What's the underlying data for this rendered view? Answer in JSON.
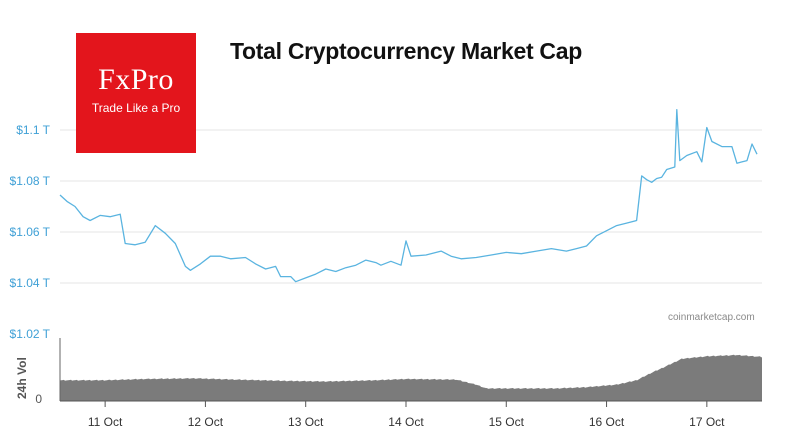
{
  "logo": {
    "name": "FxPro",
    "tagline": "Trade Like a Pro"
  },
  "source": "coinmarketcap.com",
  "colors": {
    "line": "#5ab4e0",
    "volume": "#7b7b7b",
    "logo_bg": "#e3151c",
    "tick_blue": "#3fa0d6",
    "grid": "#e6e6e6"
  },
  "chart_data": {
    "type": "line",
    "title": "Total Cryptocurrency Market Cap",
    "ylabel": "",
    "y_tick_labels": [
      "$1.1 T",
      "$1.08 T",
      "$1.06 T",
      "$1.04 T",
      "$1.02 T"
    ],
    "y_ticks": [
      1.1,
      1.08,
      1.06,
      1.04,
      1.02
    ],
    "ylim": [
      1.02,
      1.1
    ],
    "x_tick_labels": [
      "11 Oct",
      "12 Oct",
      "13 Oct",
      "14 Oct",
      "15 Oct",
      "16 Oct",
      "17 Oct"
    ],
    "x_ticks": [
      11,
      12,
      13,
      14,
      15,
      16,
      17
    ],
    "xlim": [
      10.55,
      17.55
    ],
    "grid": true,
    "series": [
      {
        "x": [
          10.55,
          10.62,
          10.7,
          10.78,
          10.85,
          10.95,
          11.05,
          11.15,
          11.2,
          11.3,
          11.4,
          11.5,
          11.6,
          11.7,
          11.8,
          11.85,
          11.95,
          12.05,
          12.15,
          12.25,
          12.4,
          12.5,
          12.6,
          12.7,
          12.75,
          12.85,
          12.9,
          13.0,
          13.1,
          13.2,
          13.3,
          13.4,
          13.5,
          13.6,
          13.7,
          13.75,
          13.85,
          13.95,
          14.0,
          14.05,
          14.2,
          14.35,
          14.45,
          14.55,
          14.7,
          14.85,
          15.0,
          15.15,
          15.3,
          15.45,
          15.6,
          15.7,
          15.8,
          15.9,
          16.0,
          16.1,
          16.2,
          16.3,
          16.35,
          16.4,
          16.45,
          16.5,
          16.55,
          16.6,
          16.68,
          16.7,
          16.73,
          16.8,
          16.9,
          16.95,
          17.0,
          17.05,
          17.15,
          17.25,
          17.3,
          17.35,
          17.4,
          17.45,
          17.5
        ],
        "y": [
          1.0745,
          1.072,
          1.07,
          1.066,
          1.0645,
          1.0665,
          1.066,
          1.067,
          1.0555,
          1.055,
          1.056,
          1.0625,
          1.0595,
          1.0555,
          1.0465,
          1.045,
          1.0475,
          1.0505,
          1.0505,
          1.0495,
          1.05,
          1.0475,
          1.0455,
          1.0465,
          1.0425,
          1.0425,
          1.0405,
          1.042,
          1.0435,
          1.0455,
          1.0445,
          1.046,
          1.047,
          1.049,
          1.048,
          1.047,
          1.0485,
          1.047,
          1.0565,
          1.0505,
          1.051,
          1.0525,
          1.0505,
          1.0495,
          1.05,
          1.051,
          1.052,
          1.0515,
          1.0525,
          1.0535,
          1.0525,
          1.0535,
          1.0545,
          1.0585,
          1.0605,
          1.0625,
          1.0635,
          1.0645,
          1.082,
          1.0805,
          1.0795,
          1.081,
          1.0815,
          1.0845,
          1.0855,
          1.108,
          1.088,
          1.09,
          1.0915,
          1.0875,
          1.101,
          1.0955,
          1.0935,
          1.0935,
          1.087,
          1.0875,
          1.088,
          1.0945,
          1.0905
        ]
      }
    ],
    "volume": {
      "ylabel": "24h Vol",
      "zero_label": "0",
      "x": [
        10.55,
        11.0,
        11.4,
        11.9,
        12.3,
        12.8,
        13.2,
        13.7,
        14.0,
        14.5,
        14.7,
        14.8,
        15.0,
        15.5,
        15.8,
        16.1,
        16.3,
        16.45,
        16.55,
        16.75,
        17.0,
        17.3,
        17.55
      ],
      "values": [
        0.33,
        0.33,
        0.35,
        0.36,
        0.34,
        0.32,
        0.31,
        0.33,
        0.35,
        0.34,
        0.26,
        0.2,
        0.2,
        0.2,
        0.22,
        0.26,
        0.33,
        0.45,
        0.52,
        0.67,
        0.71,
        0.73,
        0.7
      ]
    }
  }
}
